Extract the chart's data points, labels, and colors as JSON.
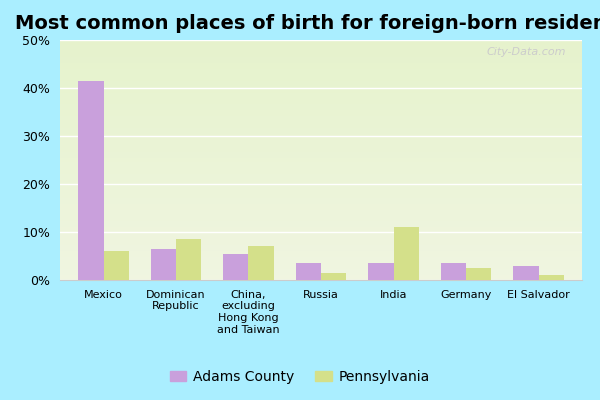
{
  "title": "Most common places of birth for foreign-born residents",
  "categories": [
    "Mexico",
    "Dominican\nRepublic",
    "China,\nexcluding\nHong Kong\nand Taiwan",
    "Russia",
    "India",
    "Germany",
    "El Salvador"
  ],
  "adams_county": [
    41.5,
    6.5,
    5.5,
    3.5,
    3.5,
    3.5,
    3.0
  ],
  "pennsylvania": [
    6.0,
    8.5,
    7.0,
    1.5,
    11.0,
    2.5,
    1.0
  ],
  "adams_color": "#c9a0dc",
  "penn_color": "#d4e08a",
  "ylim": [
    0,
    50
  ],
  "yticks": [
    0,
    10,
    20,
    30,
    40,
    50
  ],
  "ytick_labels": [
    "0%",
    "10%",
    "20%",
    "30%",
    "40%",
    "50%"
  ],
  "legend_labels": [
    "Adams County",
    "Pennsylvania"
  ],
  "watermark": "City-Data.com",
  "fig_bg_color": "#aaeeff",
  "bar_width": 0.35,
  "title_fontsize": 14
}
